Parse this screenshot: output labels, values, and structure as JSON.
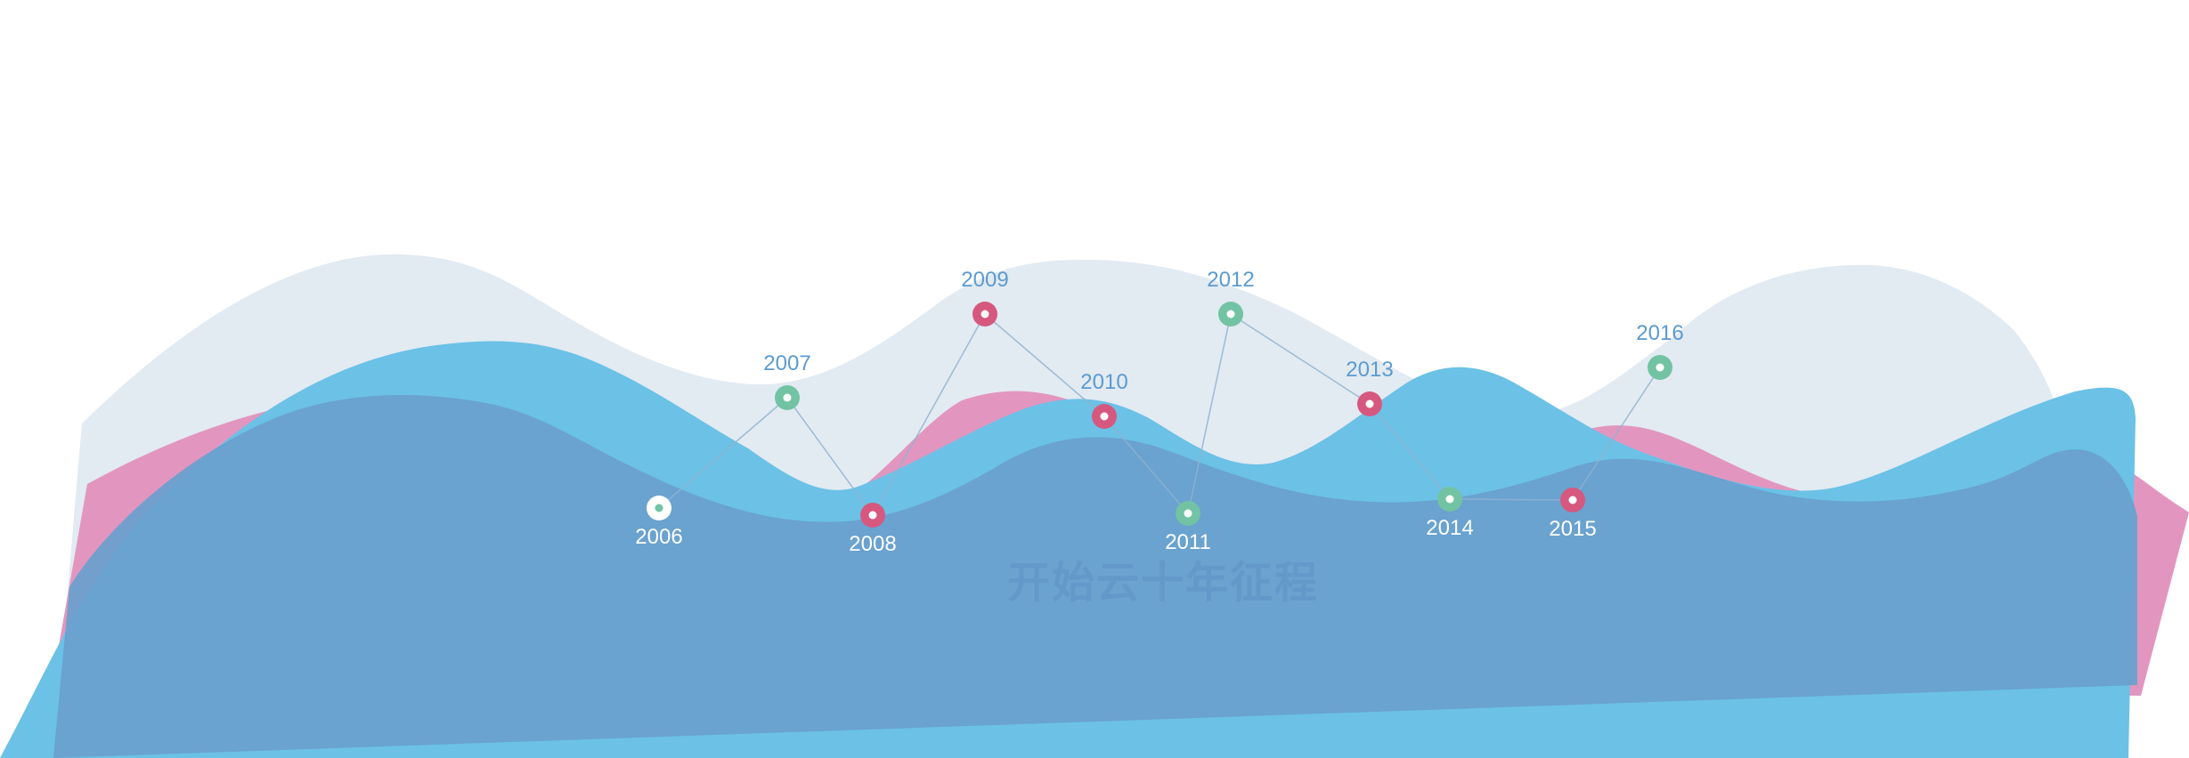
{
  "watermark": {
    "text": "开始云十年征程",
    "color": "#5c8fc4"
  },
  "colors": {
    "wave_back": "#e2eaf2",
    "wave_pink": "#e296bf",
    "wave_blue": "#6bc1e6",
    "wave_front": "#6b9fce",
    "marker_pink": "#d6587f",
    "marker_green": "#72c3a3",
    "marker_white": "#ffffff",
    "connector": "#8fb3cf",
    "label_above": "#5b9bd0",
    "label_below": "#ffffff"
  },
  "milestones": [
    {
      "year": "2006",
      "marker": "white",
      "label": "below"
    },
    {
      "year": "2007",
      "marker": "green",
      "label": "above"
    },
    {
      "year": "2008",
      "marker": "pink",
      "label": "below"
    },
    {
      "year": "2009",
      "marker": "pink",
      "label": "above"
    },
    {
      "year": "2010",
      "marker": "pink",
      "label": "above"
    },
    {
      "year": "2011",
      "marker": "green",
      "label": "below"
    },
    {
      "year": "2012",
      "marker": "green",
      "label": "above"
    },
    {
      "year": "2013",
      "marker": "pink",
      "label": "above"
    },
    {
      "year": "2014",
      "marker": "green",
      "label": "below"
    },
    {
      "year": "2015",
      "marker": "pink",
      "label": "below"
    },
    {
      "year": "2016",
      "marker": "green",
      "label": "above"
    }
  ]
}
